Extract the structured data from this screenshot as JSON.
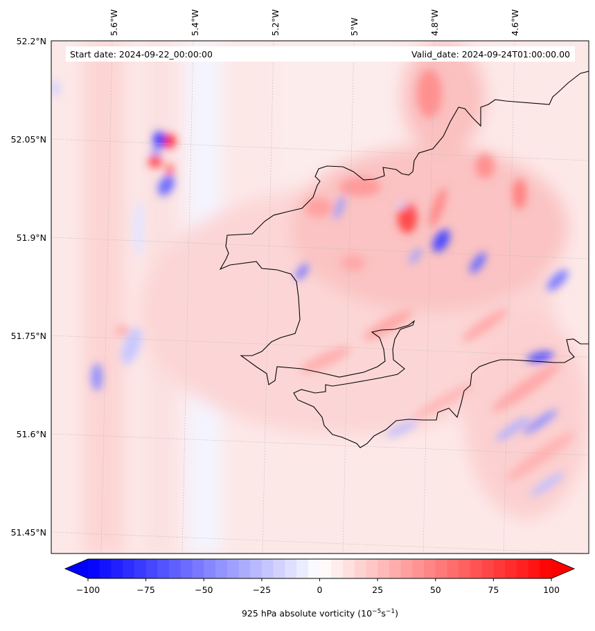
{
  "map": {
    "start_label": "Start date: 2024-09-22_00:00:00",
    "valid_label": "Valid_date: 2024-09-24T01:00:00.00",
    "lon_labels": [
      "5.6°W",
      "5.4°W",
      "5.2°W",
      "5°W",
      "4.8°W",
      "4.6°W"
    ],
    "lat_labels": [
      "52.2°N",
      "52.05°N",
      "51.9°N",
      "51.75°N",
      "51.6°N",
      "51.45°N"
    ],
    "field": "925 hPa absolute vorticity",
    "colormap": "bwr",
    "colors": {
      "negative": "#0000ff",
      "zero": "#ffffff",
      "positive": "#ff0000",
      "coastline": "#000000",
      "gridline": "#bbbbbb"
    }
  },
  "colorbar": {
    "label_main": "925 hPa absolute vorticity (10",
    "label_exp1": "−5",
    "label_mid": "s",
    "label_exp2": "−1",
    "label_end": ")",
    "min": -100,
    "max": 100,
    "ticks": [
      "−100",
      "−75",
      "−50",
      "−25",
      "0",
      "25",
      "50",
      "75",
      "100"
    ],
    "extend": "both"
  }
}
